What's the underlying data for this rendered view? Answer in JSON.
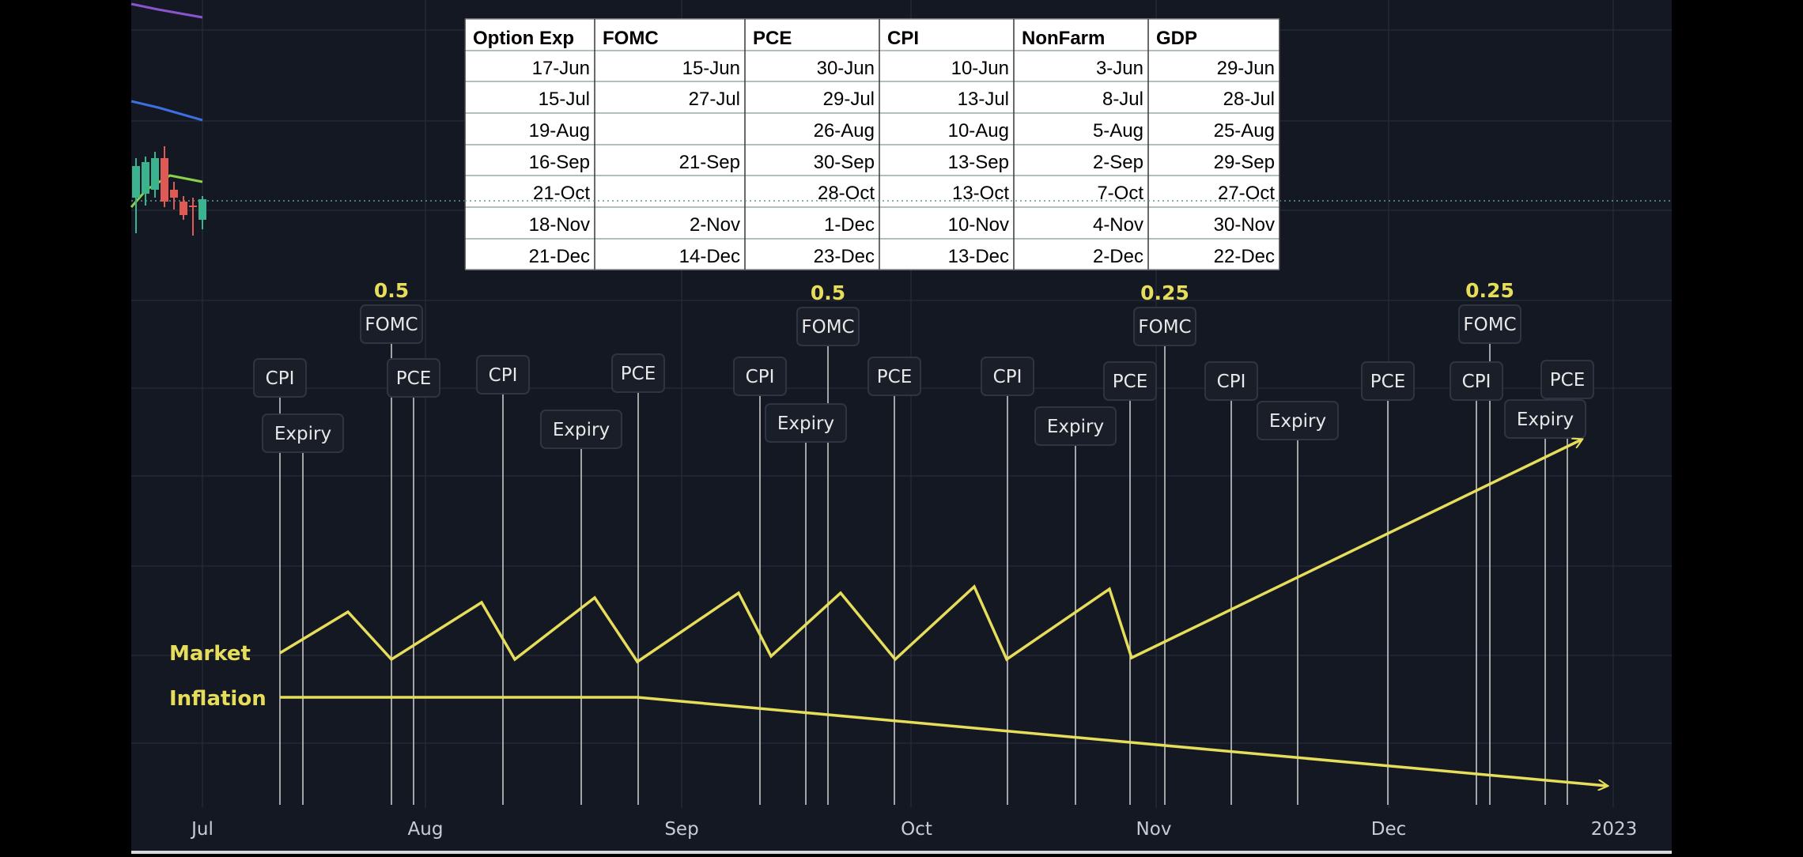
{
  "chart_data": {
    "type": "line",
    "x_axis": {
      "ticks": [
        "Jul",
        "Aug",
        "Sep",
        "Oct",
        "Nov",
        "Dec",
        "2023"
      ]
    },
    "series": [
      {
        "name": "Market",
        "color": "#e6dd5a"
      },
      {
        "name": "Inflation",
        "color": "#e6dd5a"
      }
    ],
    "event_markers": [
      {
        "label": "CPI"
      },
      {
        "label": "Expiry"
      },
      {
        "label": "FOMC",
        "rate": "0.5"
      },
      {
        "label": "PCE"
      },
      {
        "label": "CPI"
      },
      {
        "label": "Expiry"
      },
      {
        "label": "PCE"
      },
      {
        "label": "CPI"
      },
      {
        "label": "Expiry"
      },
      {
        "label": "FOMC",
        "rate": "0.5"
      },
      {
        "label": "PCE"
      },
      {
        "label": "CPI"
      },
      {
        "label": "Expiry"
      },
      {
        "label": "PCE"
      },
      {
        "label": "FOMC",
        "rate": "0.25"
      },
      {
        "label": "CPI"
      },
      {
        "label": "Expiry"
      },
      {
        "label": "PCE"
      },
      {
        "label": "CPI"
      },
      {
        "label": "FOMC",
        "rate": "0.25"
      },
      {
        "label": "Expiry"
      },
      {
        "label": "PCE"
      }
    ],
    "table": {
      "columns": [
        "Option Exp",
        "FOMC",
        "PCE",
        "CPI",
        "NonFarm",
        "GDP"
      ],
      "rows": [
        [
          "17-Jun",
          "15-Jun",
          "30-Jun",
          "10-Jun",
          "3-Jun",
          "29-Jun"
        ],
        [
          "15-Jul",
          "27-Jul",
          "29-Jul",
          "13-Jul",
          "8-Jul",
          "28-Jul"
        ],
        [
          "19-Aug",
          "",
          "26-Aug",
          "10-Aug",
          "5-Aug",
          "25-Aug"
        ],
        [
          "16-Sep",
          "21-Sep",
          "30-Sep",
          "13-Sep",
          "2-Sep",
          "29-Sep"
        ],
        [
          "21-Oct",
          "",
          "28-Oct",
          "13-Oct",
          "7-Oct",
          "27-Oct"
        ],
        [
          "18-Nov",
          "2-Nov",
          "1-Dec",
          "10-Nov",
          "4-Nov",
          "30-Nov"
        ],
        [
          "21-Dec",
          "14-Dec",
          "23-Dec",
          "13-Dec",
          "2-Dec",
          "22-Dec"
        ]
      ]
    },
    "colors": {
      "background": "#141823",
      "annotation": "#e6dd5a",
      "marker_line": "#c8c8c8",
      "label_box": "#1a1e29",
      "table_header_bg": "#ffffff"
    }
  }
}
